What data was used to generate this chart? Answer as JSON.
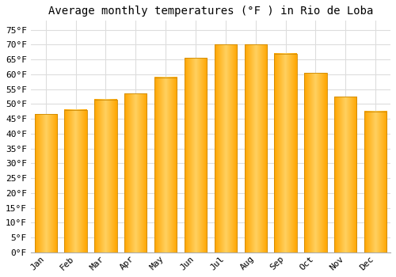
{
  "title": "Average monthly temperatures (°F ) in Rio de Loba",
  "months": [
    "Jan",
    "Feb",
    "Mar",
    "Apr",
    "May",
    "Jun",
    "Jul",
    "Aug",
    "Sep",
    "Oct",
    "Nov",
    "Dec"
  ],
  "values": [
    46.5,
    48.0,
    51.5,
    53.5,
    59.0,
    65.5,
    70.0,
    70.0,
    67.0,
    60.5,
    52.5,
    47.5
  ],
  "bar_color_left": "#FFA500",
  "bar_color_center": "#FFD060",
  "bar_color_right": "#FFA500",
  "bar_edge_color": "#CC8800",
  "background_color": "#FFFFFF",
  "grid_color": "#DDDDDD",
  "ylim": [
    0,
    78
  ],
  "yticks": [
    0,
    5,
    10,
    15,
    20,
    25,
    30,
    35,
    40,
    45,
    50,
    55,
    60,
    65,
    70,
    75
  ],
  "title_fontsize": 10,
  "tick_fontsize": 8,
  "font_family": "monospace"
}
